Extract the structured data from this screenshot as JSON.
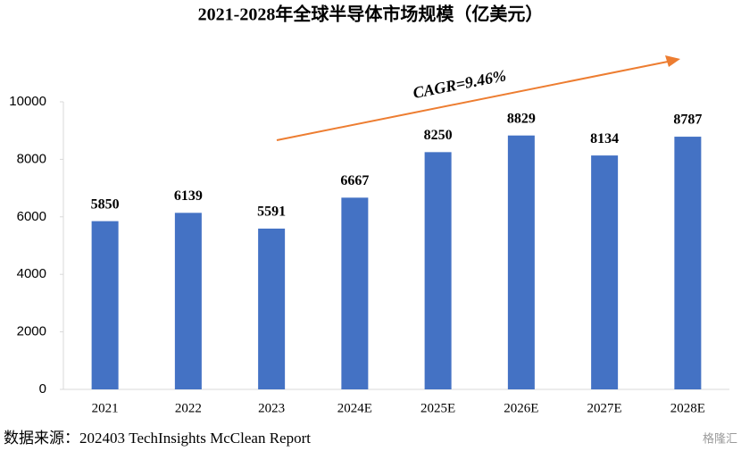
{
  "chart_data": {
    "type": "bar",
    "title": "2021-2028年全球半导体市场规模（亿美元）",
    "categories": [
      "2021",
      "2022",
      "2023",
      "2024E",
      "2025E",
      "2026E",
      "2027E",
      "2028E"
    ],
    "values": [
      5850,
      6139,
      5591,
      6667,
      8250,
      8829,
      8134,
      8787
    ],
    "color": "#4472c4",
    "ylim": [
      0,
      10000
    ],
    "yticks": [
      0,
      2000,
      4000,
      6000,
      8000,
      10000
    ],
    "grid": false,
    "annotation": "CAGR=9.46%",
    "source": "数据来源：202403 TechInsights McClean Report",
    "watermark": "格隆汇"
  }
}
